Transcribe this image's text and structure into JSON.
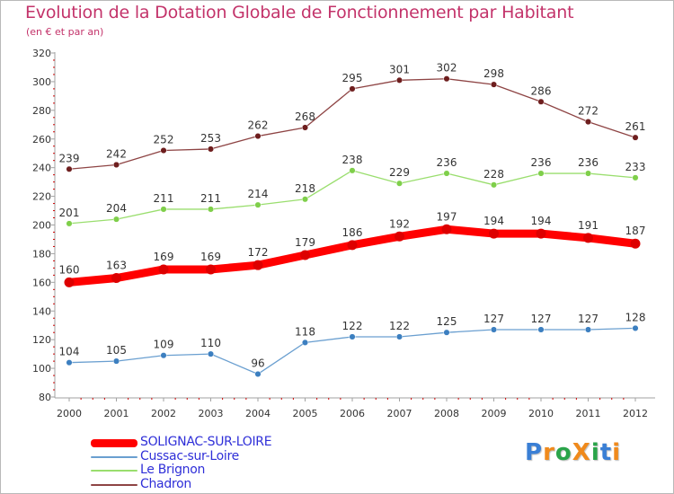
{
  "title": "Evolution de la Dotation Globale de Fonctionnement par Habitant",
  "subtitle": "(en € et par an)",
  "logo": {
    "text": "ProXiti",
    "colors": [
      "#3a7fd5",
      "#f08a1c",
      "#2aa44a",
      "#f08a1c",
      "#2aa44a",
      "#3a7fd5",
      "#f08a1c"
    ]
  },
  "colors": {
    "title": "#c3336a",
    "axis": "#a2a2a2",
    "tick_label": "#333333",
    "red_tick": "#cc0000",
    "data_label": "#333333"
  },
  "chart_data": {
    "type": "line",
    "title": "Evolution de la Dotation Globale de Fonctionnement par Habitant",
    "subtitle": "(en € et par an)",
    "xlabel": "",
    "ylabel": "",
    "x": [
      "2000",
      "2001",
      "2002",
      "2003",
      "2004",
      "2005",
      "2006",
      "2007",
      "2008",
      "2009",
      "2010",
      "2011",
      "2012"
    ],
    "ylim": [
      80,
      320
    ],
    "yticks": [
      "80",
      "100",
      "120",
      "140",
      "160",
      "180",
      "200",
      "220",
      "240",
      "260",
      "280",
      "300",
      "320"
    ],
    "grid": false,
    "legend_position": "bottom-left",
    "series": [
      {
        "name": "SOLIGNAC-SUR-LOIRE",
        "color": "#ff0000",
        "marker": "#dd0000",
        "text_color": "#2f2fd8",
        "thick": true,
        "values": [
          160,
          163,
          169,
          169,
          172,
          179,
          186,
          192,
          197,
          194,
          194,
          191,
          187
        ],
        "labels": [
          "160",
          "163",
          "169",
          "169",
          "172",
          "179",
          "186",
          "192",
          "197",
          "194",
          "194",
          "191",
          "187"
        ]
      },
      {
        "name": "Cussac-sur-Loire",
        "color": "#6a9fd0",
        "marker": "#3c7fc0",
        "text_color": "#2f2fd8",
        "thick": false,
        "values": [
          104,
          105,
          109,
          110,
          96,
          118,
          122,
          122,
          125,
          127,
          127,
          127,
          128
        ],
        "labels": [
          "104",
          "105",
          "109",
          "110",
          "96",
          "118",
          "122",
          "122",
          "125",
          "127",
          "127",
          "127",
          "128"
        ]
      },
      {
        "name": "Le Brignon",
        "color": "#9ade6e",
        "marker": "#7fcf4a",
        "text_color": "#2f2fd8",
        "thick": false,
        "values": [
          201,
          204,
          211,
          211,
          214,
          218,
          238,
          229,
          236,
          228,
          236,
          236,
          233
        ],
        "labels": [
          "201",
          "204",
          "211",
          "211",
          "214",
          "218",
          "238",
          "229",
          "236",
          "228",
          "236",
          "236",
          "233"
        ]
      },
      {
        "name": "Chadron",
        "color": "#8e4444",
        "marker": "#6e1e1e",
        "text_color": "#2f2fd8",
        "thick": false,
        "values": [
          239,
          242,
          252,
          253,
          262,
          268,
          295,
          301,
          302,
          298,
          286,
          272,
          261
        ],
        "labels": [
          "239",
          "242",
          "252",
          "253",
          "262",
          "268",
          "295",
          "301",
          "302",
          "298",
          "286",
          "272",
          "261"
        ]
      }
    ]
  }
}
